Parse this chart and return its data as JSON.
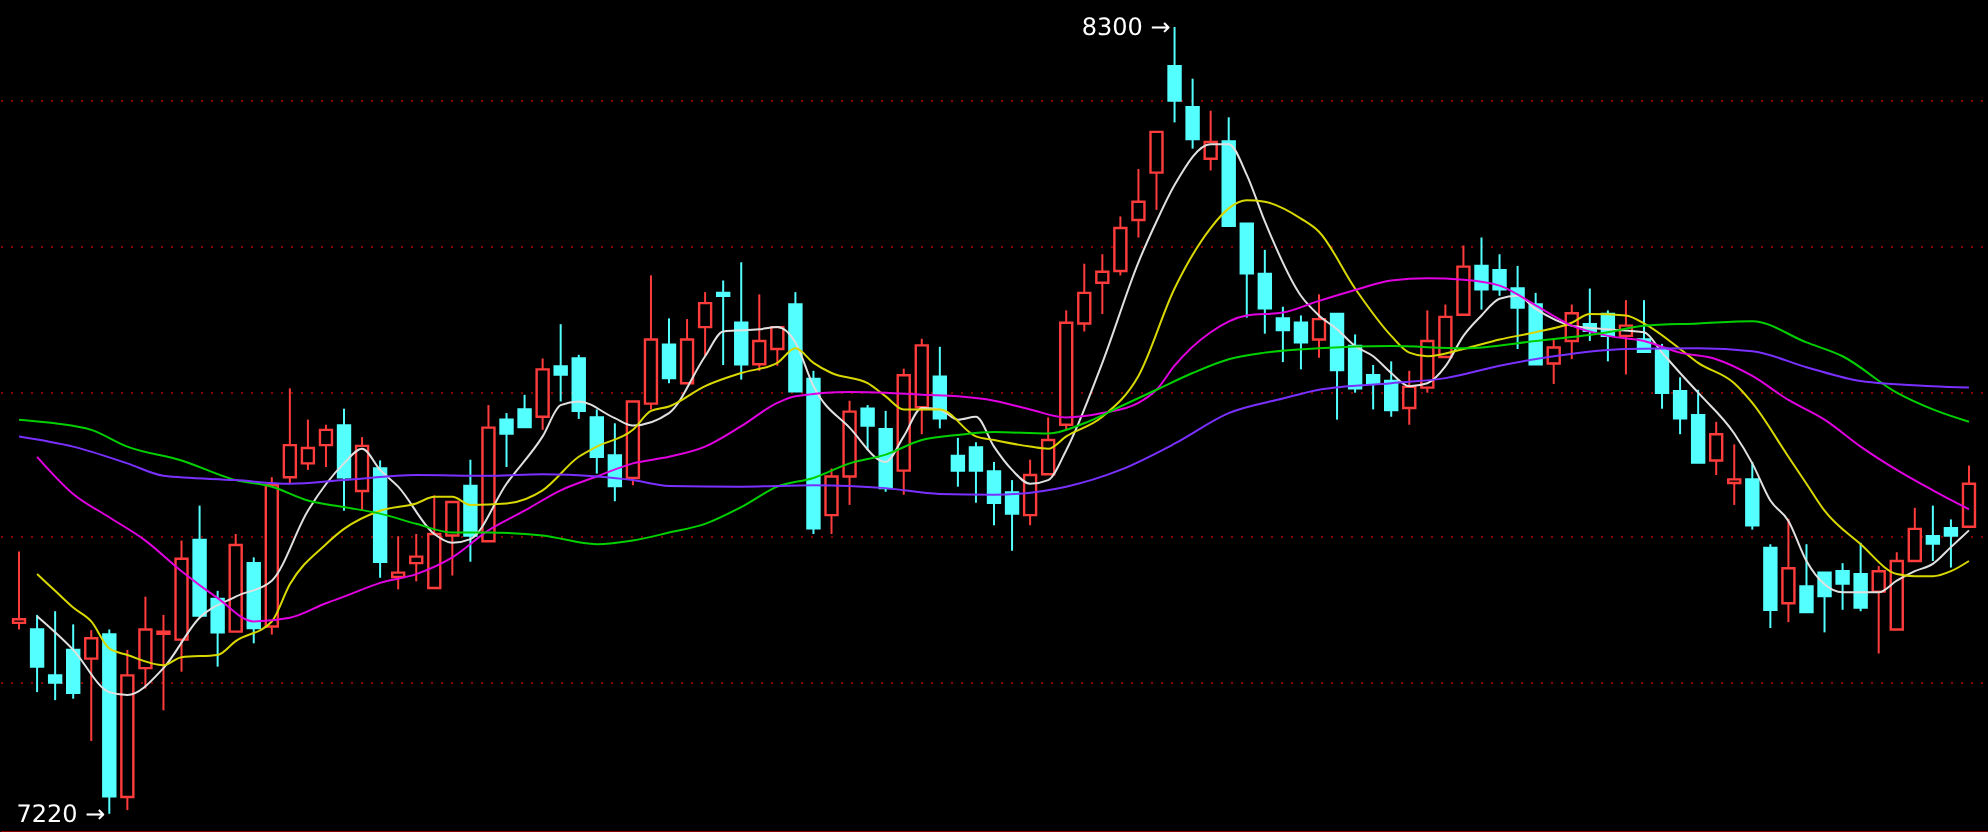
{
  "chart_data": {
    "type": "candlestick",
    "categories": [
      null,
      null,
      null,
      null,
      null,
      null,
      null,
      null,
      null,
      null,
      null,
      null,
      null,
      null,
      null,
      null,
      null,
      null,
      null,
      null,
      null,
      null,
      null,
      null,
      null,
      null,
      null,
      null,
      null,
      null,
      null,
      null,
      null,
      null,
      null,
      null,
      null,
      null,
      null,
      null,
      null,
      null,
      null,
      null,
      null,
      null,
      null,
      null,
      null,
      null,
      null,
      null,
      null,
      null,
      null,
      null,
      null,
      null,
      null,
      null,
      null,
      null,
      null,
      null,
      null,
      null,
      null,
      null,
      null,
      null,
      null,
      null,
      null,
      null,
      null,
      null,
      null,
      null,
      null,
      null,
      null,
      null,
      null,
      null,
      null,
      null,
      null,
      null,
      null,
      null,
      null,
      null,
      null,
      null,
      null,
      null,
      null,
      null,
      null,
      null,
      null,
      null,
      null,
      null,
      null,
      null,
      null,
      null,
      null
    ],
    "ohlc": [
      [
        7482,
        7580,
        7473,
        7487
      ],
      [
        7473,
        7493,
        7387,
        7422
      ],
      [
        7410,
        7498,
        7376,
        7400
      ],
      [
        7445,
        7480,
        7378,
        7386
      ],
      [
        7433,
        7472,
        7320,
        7461
      ],
      [
        7466,
        7473,
        7220,
        7244
      ],
      [
        7243,
        7445,
        7225,
        7410
      ],
      [
        7420,
        7518,
        7392,
        7473
      ],
      [
        7467,
        7493,
        7362,
        7470
      ],
      [
        7459,
        7595,
        7415,
        7570
      ],
      [
        7596,
        7643,
        7490,
        7492
      ],
      [
        7515,
        7526,
        7422,
        7469
      ],
      [
        7470,
        7604,
        7470,
        7589
      ],
      [
        7564,
        7572,
        7454,
        7475
      ],
      [
        7477,
        7682,
        7466,
        7671
      ],
      [
        7682,
        7804,
        7673,
        7726
      ],
      [
        7701,
        7761,
        7692,
        7722
      ],
      [
        7726,
        7754,
        7696,
        7747
      ],
      [
        7753,
        7776,
        7636,
        7682
      ],
      [
        7663,
        7737,
        7636,
        7725
      ],
      [
        7694,
        7705,
        7544,
        7566
      ],
      [
        7545,
        7601,
        7528,
        7551
      ],
      [
        7564,
        7604,
        7539,
        7573
      ],
      [
        7530,
        7657,
        7530,
        7604
      ],
      [
        7602,
        7648,
        7547,
        7648
      ],
      [
        7670,
        7706,
        7566,
        7602
      ],
      [
        7594,
        7781,
        7594,
        7750
      ],
      [
        7761,
        7770,
        7696,
        7742
      ],
      [
        7775,
        7795,
        7751,
        7751
      ],
      [
        7765,
        7845,
        7747,
        7830
      ],
      [
        7834,
        7892,
        7786,
        7823
      ],
      [
        7845,
        7850,
        7762,
        7773
      ],
      [
        7764,
        7775,
        7687,
        7710
      ],
      [
        7712,
        7756,
        7649,
        7670
      ],
      [
        7681,
        7786,
        7671,
        7786
      ],
      [
        7783,
        7959,
        7775,
        7871
      ],
      [
        7864,
        7900,
        7811,
        7818
      ],
      [
        7811,
        7899,
        7811,
        7871
      ],
      [
        7888,
        7936,
        7848,
        7921
      ],
      [
        7935,
        7952,
        7836,
        7931
      ],
      [
        7894,
        7977,
        7816,
        7837
      ],
      [
        7837,
        7933,
        7828,
        7869
      ],
      [
        7858,
        7888,
        7835,
        7888
      ],
      [
        7919,
        7936,
        7800,
        7800
      ],
      [
        7817,
        7828,
        7604,
        7612
      ],
      [
        7630,
        7694,
        7604,
        7683
      ],
      [
        7683,
        7787,
        7644,
        7772
      ],
      [
        7776,
        7781,
        7719,
        7753
      ],
      [
        7748,
        7773,
        7662,
        7667
      ],
      [
        7691,
        7831,
        7658,
        7822
      ],
      [
        7778,
        7872,
        7741,
        7863
      ],
      [
        7820,
        7861,
        7749,
        7763
      ],
      [
        7711,
        7736,
        7669,
        7691
      ],
      [
        7723,
        7730,
        7647,
        7691
      ],
      [
        7690,
        7703,
        7616,
        7647
      ],
      [
        7661,
        7678,
        7581,
        7632
      ],
      [
        7630,
        7706,
        7616,
        7685
      ],
      [
        7686,
        7764,
        7686,
        7733
      ],
      [
        7754,
        7911,
        7747,
        7894
      ],
      [
        7893,
        7975,
        7882,
        7935
      ],
      [
        7949,
        7988,
        7906,
        7964
      ],
      [
        7965,
        8040,
        7959,
        8024
      ],
      [
        8035,
        8105,
        8011,
        8060
      ],
      [
        8100,
        8156,
        8049,
        8156
      ],
      [
        8246,
        8300,
        8169,
        8199
      ],
      [
        8190,
        8229,
        8133,
        8146
      ],
      [
        8119,
        8185,
        8103,
        8142
      ],
      [
        8143,
        8176,
        8027,
        8027
      ],
      [
        8030,
        8030,
        7901,
        7962
      ],
      [
        7961,
        7994,
        7879,
        7914
      ],
      [
        7900,
        7916,
        7840,
        7884
      ],
      [
        7894,
        7904,
        7830,
        7867
      ],
      [
        7871,
        7933,
        7846,
        7899
      ],
      [
        7906,
        7906,
        7761,
        7829
      ],
      [
        7862,
        7878,
        7798,
        7804
      ],
      [
        7822,
        7836,
        7775,
        7811
      ],
      [
        7814,
        7841,
        7765,
        7774
      ],
      [
        7777,
        7828,
        7754,
        7806
      ],
      [
        7805,
        7911,
        7798,
        7869
      ],
      [
        7847,
        7919,
        7847,
        7902
      ],
      [
        7905,
        8000,
        7905,
        7971
      ],
      [
        7972,
        8011,
        7912,
        7940
      ],
      [
        7966,
        7988,
        7931,
        7940
      ],
      [
        7941,
        7972,
        7858,
        7915
      ],
      [
        7919,
        7935,
        7837,
        7837
      ],
      [
        7838,
        7871,
        7810,
        7860
      ],
      [
        7869,
        7919,
        7844,
        7907
      ],
      [
        7892,
        7941,
        7869,
        7883
      ],
      [
        7906,
        7911,
        7841,
        7876
      ],
      [
        7876,
        7925,
        7823,
        7890
      ],
      [
        7871,
        7925,
        7854,
        7854
      ],
      [
        7858,
        7865,
        7776,
        7798
      ],
      [
        7800,
        7819,
        7741,
        7763
      ],
      [
        7767,
        7802,
        7702,
        7702
      ],
      [
        7705,
        7758,
        7685,
        7741
      ],
      [
        7674,
        7727,
        7644,
        7679
      ],
      [
        7679,
        7703,
        7610,
        7616
      ],
      [
        7585,
        7590,
        7475,
        7500
      ],
      [
        7509,
        7625,
        7483,
        7557
      ],
      [
        7532,
        7590,
        7497,
        7497
      ],
      [
        7551,
        7551,
        7469,
        7519
      ],
      [
        7553,
        7564,
        7500,
        7536
      ],
      [
        7549,
        7592,
        7498,
        7503
      ],
      [
        7525,
        7560,
        7440,
        7553
      ],
      [
        7473,
        7579,
        7473,
        7567
      ],
      [
        7567,
        7640,
        7567,
        7611
      ],
      [
        7601,
        7643,
        7567,
        7591
      ],
      [
        7612,
        7624,
        7558,
        7602
      ],
      [
        7614,
        7698,
        7614,
        7673
      ]
    ],
    "series": [
      {
        "type": "line",
        "color": "#e0e0e0",
        "values": [
          null,
          7491,
          null,
          7445,
          null,
          7387,
          7383,
          null,
          7420,
          null,
          7489,
          null,
          7518,
          null,
          7540,
          null,
          7636,
          null,
          7701,
          7721,
          7692,
          7669,
          null,
          7604,
          7592,
          7597,
          null,
          7673,
          null,
          7738,
          7781,
          7786,
          null,
          7763,
          7753,
          null,
          7770,
          null,
          7848,
          7882,
          null,
          7885,
          7888,
          7867,
          7807,
          null,
          7750,
          null,
          7703,
          7738,
          7777,
          7775,
          7761,
          7765,
          7724,
          7692,
          7673,
          7678,
          7719,
          null,
          7839,
          null,
          7977,
          8033,
          8083,
          null,
          8139,
          8139,
          8097,
          8033,
          null,
          7931,
          7904,
          7885,
          7862,
          7848,
          7825,
          7807,
          7811,
          7834,
          7876,
          7904,
          7927,
          7931,
          7913,
          null,
          7890,
          null,
          7885,
          null,
          7881,
          7853,
          7825,
          7798,
          null,
          7742,
          7701,
          7650,
          7622,
          7567,
          7535,
          7524,
          null,
          7524,
          7540,
          7553,
          7563,
          7586,
          7609
        ]
      },
      {
        "type": "line",
        "color": "#d8d800",
        "values": [
          null,
          7549,
          7526,
          7503,
          7484,
          7447,
          7438,
          null,
          7424,
          7435,
          null,
          7438,
          7457,
          null,
          7484,
          7535,
          null,
          7590,
          7611,
          null,
          7636,
          null,
          7646,
          7655,
          7655,
          7644,
          null,
          7646,
          null,
          7664,
          null,
          7710,
          7724,
          null,
          7747,
          7773,
          7779,
          null,
          7807,
          null,
          7825,
          null,
          7839,
          7859,
          7839,
          7825,
          null,
          7811,
          7793,
          7775,
          null,
          7775,
          null,
          7738,
          7733,
          null,
          7724,
          7721,
          7738,
          null,
          7765,
          null,
          7821,
          null,
          7941,
          null,
          8024,
          8051,
          8062,
          8060,
          null,
          8037,
          8019,
          null,
          7941,
          null,
          7876,
          7853,
          7848,
          null,
          7858,
          null,
          7871,
          null,
          7881,
          null,
          7894,
          7906,
          null,
          7904,
          7893,
          null,
          7858,
          7839,
          null,
          7811,
          7784,
          null,
          7710,
          7673,
          7636,
          null,
          7590,
          null,
          7549,
          7546,
          7546,
          7553,
          7567
        ]
      },
      {
        "type": "line",
        "color": "#e000e0",
        "values": [
          null,
          7710,
          null,
          7659,
          null,
          7627,
          null,
          7595,
          null,
          7553,
          null,
          7516,
          null,
          7484,
          null,
          7489,
          null,
          7509,
          7518,
          null,
          7537,
          null,
          7549,
          null,
          7572,
          null,
          7609,
          null,
          7636,
          null,
          7664,
          null,
          7683,
          null,
          7701,
          null,
          7710,
          null,
          7724,
          null,
          7752,
          null,
          7784,
          7793,
          null,
          null,
          7799,
          null,
          7798,
          null,
          7795,
          null,
          7793,
          null,
          7787,
          null,
          7775,
          null,
          7764,
          null,
          7770,
          null,
          7784,
          7802,
          7835,
          null,
          7881,
          null,
          7904,
          null,
          7908,
          null,
          7924,
          null,
          7939,
          null,
          7952,
          null,
          7955,
          null,
          7953,
          null,
          7945,
          null,
          7918,
          null,
          7890,
          null,
          7876,
          null,
          7869,
          null,
          7853,
          null,
          7844,
          null,
          7821,
          null,
          7788,
          null,
          7761,
          null,
          7724,
          null,
          7692,
          null,
          7664,
          null,
          7638
        ]
      },
      {
        "type": "line",
        "color": "#00d000",
        "values": [
          7761,
          null,
          7756,
          null,
          7747,
          null,
          7724,
          null,
          null,
          7705,
          null,
          null,
          7678,
          null,
          7669,
          null,
          7650,
          null,
          7641,
          null,
          7632,
          null,
          7618,
          null,
          7606,
          null,
          7606,
          null,
          null,
          7602,
          null,
          null,
          7590,
          null,
          7595,
          null,
          7606,
          null,
          7618,
          null,
          7641,
          null,
          7669,
          null,
          7681,
          null,
          7701,
          null,
          7713,
          null,
          7733,
          null,
          7740,
          null,
          7744,
          null,
          null,
          7742,
          null,
          7756,
          null,
          7779,
          null,
          7802,
          null,
          7825,
          null,
          7844,
          null,
          7853,
          null,
          null,
          7859,
          null,
          null,
          null,
          7862,
          null,
          null,
          null,
          7859,
          null,
          null,
          null,
          7869,
          null,
          null,
          null,
          7881,
          null,
          7890,
          null,
          null,
          7893,
          null,
          null,
          7896,
          null,
          null,
          7867,
          null,
          7848,
          null,
          null,
          7798,
          null,
          7775,
          null,
          7758
        ]
      },
      {
        "type": "line",
        "color": "#7a30ff",
        "values": [
          7738,
          null,
          null,
          7724,
          null,
          null,
          7701,
          null,
          7684,
          null,
          null,
          null,
          7678,
          null,
          null,
          7673,
          null,
          null,
          7678,
          null,
          null,
          null,
          7685,
          null,
          null,
          null,
          7684,
          null,
          null,
          7686,
          null,
          null,
          7683,
          null,
          7678,
          null,
          7670,
          null,
          null,
          null,
          7669,
          null,
          null,
          null,
          7671,
          null,
          null,
          null,
          7667,
          null,
          null,
          7659,
          null,
          null,
          7658,
          null,
          null,
          null,
          7669,
          null,
          null,
          7692,
          null,
          null,
          7728,
          null,
          null,
          7770,
          null,
          null,
          7790,
          null,
          7802,
          null,
          null,
          null,
          7811,
          null,
          null,
          7818,
          null,
          null,
          7835,
          null,
          null,
          7848,
          null,
          null,
          null,
          7858,
          null,
          null,
          null,
          7859,
          null,
          null,
          7855,
          null,
          null,
          7833,
          null,
          null,
          7814,
          null,
          null,
          null,
          7807,
          null,
          7805
        ]
      }
    ],
    "ylim": [
      7195,
      8337
    ],
    "yticks": [
      {
        "value": 7400,
        "label": null
      },
      {
        "value": 7600,
        "label": null
      },
      {
        "value": 7800,
        "label": null
      },
      {
        "value": 8000,
        "label": null
      },
      {
        "value": 8200,
        "label": null
      }
    ],
    "grid": "y",
    "tick_labels": false,
    "annotations": [
      "8300 →",
      "7220 →"
    ]
  }
}
